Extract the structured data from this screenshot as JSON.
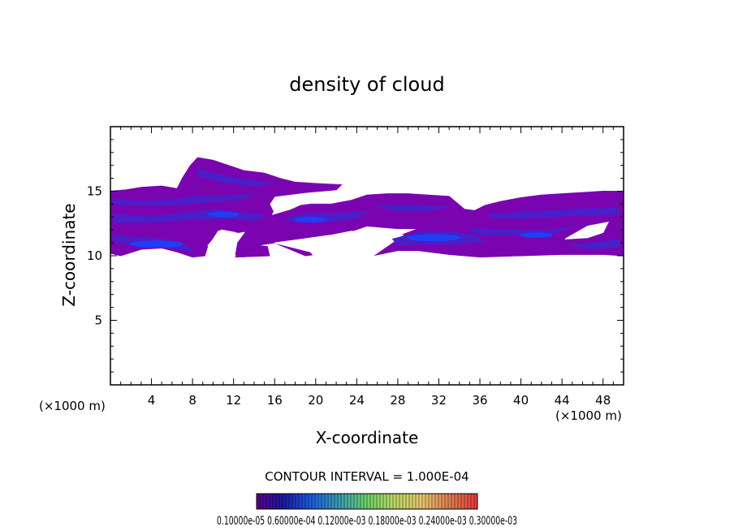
{
  "chart_data": {
    "type": "heatmap",
    "title": "density of cloud",
    "xlabel": "X-coordinate",
    "ylabel": "Z-coordinate",
    "x_unit": "(×1000 m)",
    "z_unit": "(×1000 m)",
    "xlim": [
      0,
      50
    ],
    "zlim": [
      0,
      20
    ],
    "x_ticks": [
      4,
      8,
      12,
      16,
      20,
      24,
      28,
      32,
      36,
      40,
      44,
      48
    ],
    "z_ticks": [
      5,
      10,
      15
    ],
    "contour_interval_text": "CONTOUR INTERVAL = 1.000E-04",
    "colorbar_labels_text": "0.10000e-05  0.60000e-04  0.12000e-03  0.18000e-03  0.24000e-03  0.30000e-03",
    "colorbar_levels": [
      1e-06,
      6e-05,
      0.00012,
      0.00018,
      0.00024,
      0.0003
    ],
    "colors": {
      "background": "#ffffff",
      "cloud_low": "#7a05b0",
      "cloud_mid": "#4a1ec8",
      "cloud_high": "#1f3ef5"
    },
    "cloud_regions": [
      {
        "x": [
          0,
          22.5
        ],
        "z": [
          10.0,
          17.6
        ],
        "density_level": "low-mid"
      },
      {
        "x": [
          12.5,
          25
        ],
        "z": [
          10.0,
          14.2
        ],
        "density_level": "low-mid"
      },
      {
        "x": [
          25,
          50
        ],
        "z": [
          10.0,
          15.0
        ],
        "density_level": "mid-high"
      }
    ],
    "peak_cores": [
      {
        "x": 4.5,
        "z": 10.9,
        "level": "high"
      },
      {
        "x": 11.0,
        "z": 13.2,
        "level": "mid"
      },
      {
        "x": 19.5,
        "z": 12.8,
        "level": "mid"
      },
      {
        "x": 31.5,
        "z": 11.4,
        "level": "high"
      },
      {
        "x": 41.5,
        "z": 11.6,
        "level": "mid"
      }
    ]
  }
}
